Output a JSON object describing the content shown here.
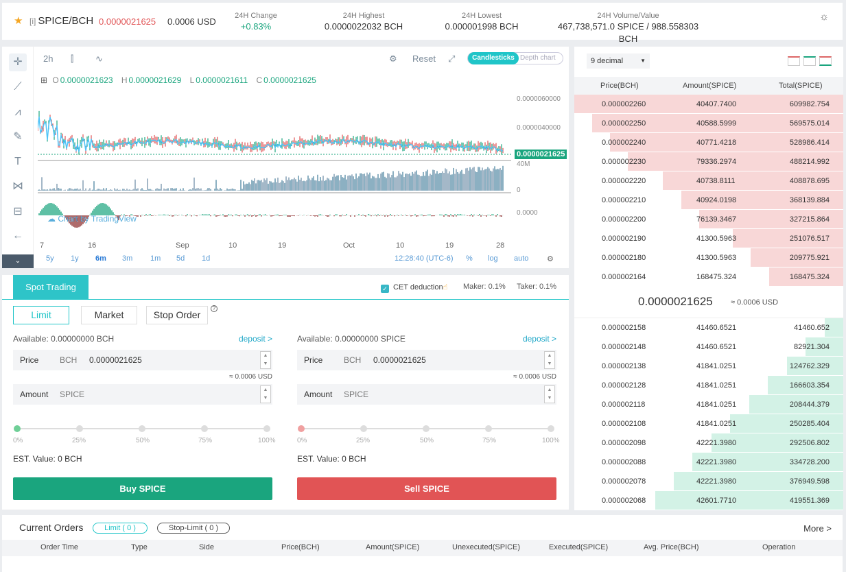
{
  "header": {
    "market_tag": "[i]",
    "pair": "SPICE/BCH",
    "price": "0.0000021625",
    "usd": "0.0006 USD",
    "stats": [
      {
        "label": "24H Change",
        "value": "+0.83%"
      },
      {
        "label": "24H Highest",
        "value": "0.0000022032 BCH"
      },
      {
        "label": "24H Lowest",
        "value": "0.000001998 BCH"
      },
      {
        "label": "24H Volume/Value",
        "value": "467,738,571.0 SPICE / 988.558303 BCH"
      }
    ]
  },
  "chart": {
    "interval": "2h",
    "reset": "Reset",
    "candlesticks": "Candlesticks",
    "depth": "Depth chart",
    "ohlc": {
      "o_label": "O",
      "o": "0.0000021623",
      "h_label": "H",
      "h": "0.0000021629",
      "l_label": "L",
      "l": "0.0000021611",
      "c_label": "C",
      "c": "0.0000021625"
    },
    "y_labels": [
      "0.0000060000",
      "0.0000040000"
    ],
    "last_price": "0.0000021625",
    "vol_labels": [
      "40M",
      "0"
    ],
    "macd_label": "0.0000",
    "x_labels": [
      "7",
      "16",
      "Sep",
      "10",
      "19",
      "Oct",
      "10",
      "19",
      "28"
    ],
    "timeframes": [
      "5y",
      "1y",
      "6m",
      "3m",
      "1m",
      "5d",
      "1d"
    ],
    "active_timeframe": "6m",
    "time": "12:28:40 (UTC-6)",
    "pct": "%",
    "log": "log",
    "auto": "auto",
    "tv_logo": "Chart by TradingView",
    "colors": {
      "up": "#1aa57e",
      "down": "#e15455",
      "ma": "#4fc3f7"
    }
  },
  "trade": {
    "tab": "Spot Trading",
    "cet": "CET deduction",
    "maker": "Maker: 0.1%",
    "taker": "Taker: 0.1%",
    "order_types": [
      "Limit",
      "Market",
      "Stop Order"
    ],
    "help": "?",
    "buy": {
      "available": "Available: 0.00000000 BCH",
      "deposit": "deposit >",
      "price_label": "Price",
      "price_unit": "BCH",
      "price": "0.0000021625",
      "approx": "≈ 0.0006 USD",
      "amount_label": "Amount",
      "amount_unit": "SPICE",
      "est": "EST. Value: 0 BCH",
      "button": "Buy SPICE"
    },
    "sell": {
      "available": "Available: 0.00000000 SPICE",
      "deposit": "deposit >",
      "price_label": "Price",
      "price_unit": "BCH",
      "price": "0.0000021625",
      "approx": "≈ 0.0006 USD",
      "amount_label": "Amount",
      "amount_unit": "SPICE",
      "est": "EST. Value: 0 BCH",
      "button": "Sell SPICE"
    },
    "percents": [
      "0%",
      "25%",
      "50%",
      "75%",
      "100%"
    ],
    "colors": {
      "buy": "#1aa57e",
      "sell": "#e15455"
    }
  },
  "book": {
    "decimal": "9 decimal",
    "headers": [
      "Price(BCH)",
      "Amount(SPICE)",
      "Total(SPICE)"
    ],
    "asks": [
      {
        "price": "0.000002260",
        "amount": "40407.7400",
        "total": "609982.754",
        "fill": 1.0
      },
      {
        "price": "0.000002250",
        "amount": "40588.5999",
        "total": "569575.014",
        "fill": 0.934
      },
      {
        "price": "0.000002240",
        "amount": "40771.4218",
        "total": "528986.414",
        "fill": 0.867
      },
      {
        "price": "0.000002230",
        "amount": "79336.2974",
        "total": "488214.992",
        "fill": 0.8
      },
      {
        "price": "0.000002220",
        "amount": "40738.8111",
        "total": "408878.695",
        "fill": 0.67
      },
      {
        "price": "0.000002210",
        "amount": "40924.0198",
        "total": "368139.884",
        "fill": 0.603
      },
      {
        "price": "0.000002200",
        "amount": "76139.3467",
        "total": "327215.864",
        "fill": 0.536
      },
      {
        "price": "0.000002190",
        "amount": "41300.5963",
        "total": "251076.517",
        "fill": 0.41
      },
      {
        "price": "0.000002180",
        "amount": "41300.5963",
        "total": "209775.921",
        "fill": 0.344
      },
      {
        "price": "0.000002164",
        "amount": "168475.324",
        "total": "168475.324",
        "fill": 0.276
      }
    ],
    "mid_price": "0.0000021625",
    "mid_usd": "≈ 0.0006 USD",
    "bids": [
      {
        "price": "0.000002158",
        "amount": "41460.6521",
        "total": "41460.652",
        "fill": 0.07
      },
      {
        "price": "0.000002148",
        "amount": "41460.6521",
        "total": "82921.304",
        "fill": 0.14
      },
      {
        "price": "0.000002138",
        "amount": "41841.0251",
        "total": "124762.329",
        "fill": 0.21
      },
      {
        "price": "0.000002128",
        "amount": "41841.0251",
        "total": "166603.354",
        "fill": 0.28
      },
      {
        "price": "0.000002118",
        "amount": "41841.0251",
        "total": "208444.379",
        "fill": 0.35
      },
      {
        "price": "0.000002108",
        "amount": "41841.0251",
        "total": "250285.404",
        "fill": 0.42
      },
      {
        "price": "0.000002098",
        "amount": "42221.3980",
        "total": "292506.802",
        "fill": 0.49
      },
      {
        "price": "0.000002088",
        "amount": "42221.3980",
        "total": "334728.200",
        "fill": 0.56
      },
      {
        "price": "0.000002078",
        "amount": "42221.3980",
        "total": "376949.598",
        "fill": 0.63
      },
      {
        "price": "0.000002068",
        "amount": "42601.7710",
        "total": "419551.369",
        "fill": 0.7
      }
    ],
    "colors": {
      "ask": "#f8d7d7",
      "bid": "#d3f2e6"
    }
  },
  "orders": {
    "title": "Current Orders",
    "limit_chip": "Limit ( 0 )",
    "stop_chip": "Stop-Limit ( 0 )",
    "more": "More >",
    "columns": [
      "Order Time",
      "Type",
      "Side",
      "Price(BCH)",
      "Amount(SPICE)",
      "Unexecuted(SPICE)",
      "Executed(SPICE)",
      "Avg. Price(BCH)",
      "Operation"
    ]
  }
}
